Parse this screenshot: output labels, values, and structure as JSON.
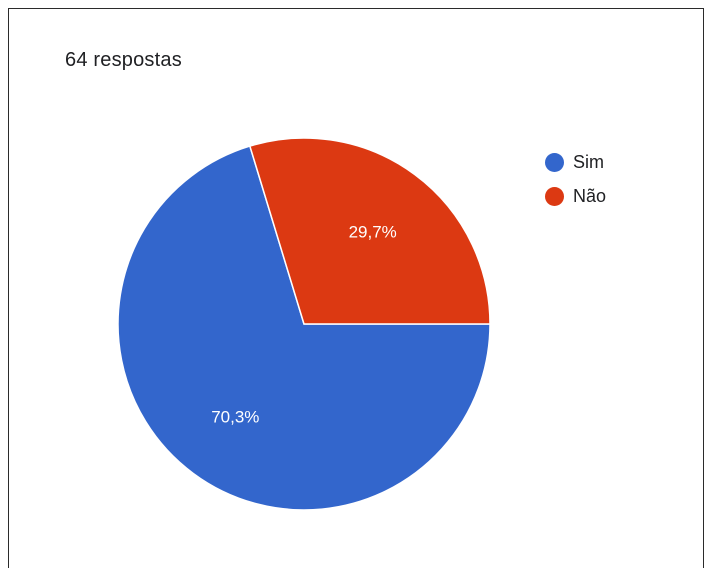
{
  "summary": {
    "count_label": "64 respostas"
  },
  "chart_data": {
    "type": "pie",
    "categories": [
      "Sim",
      "Não"
    ],
    "values": [
      70.3,
      29.7
    ],
    "labels": [
      "70,3%",
      "29,7%"
    ],
    "colors": [
      "#3366cc",
      "#dc3912"
    ],
    "legend_position": "right"
  }
}
